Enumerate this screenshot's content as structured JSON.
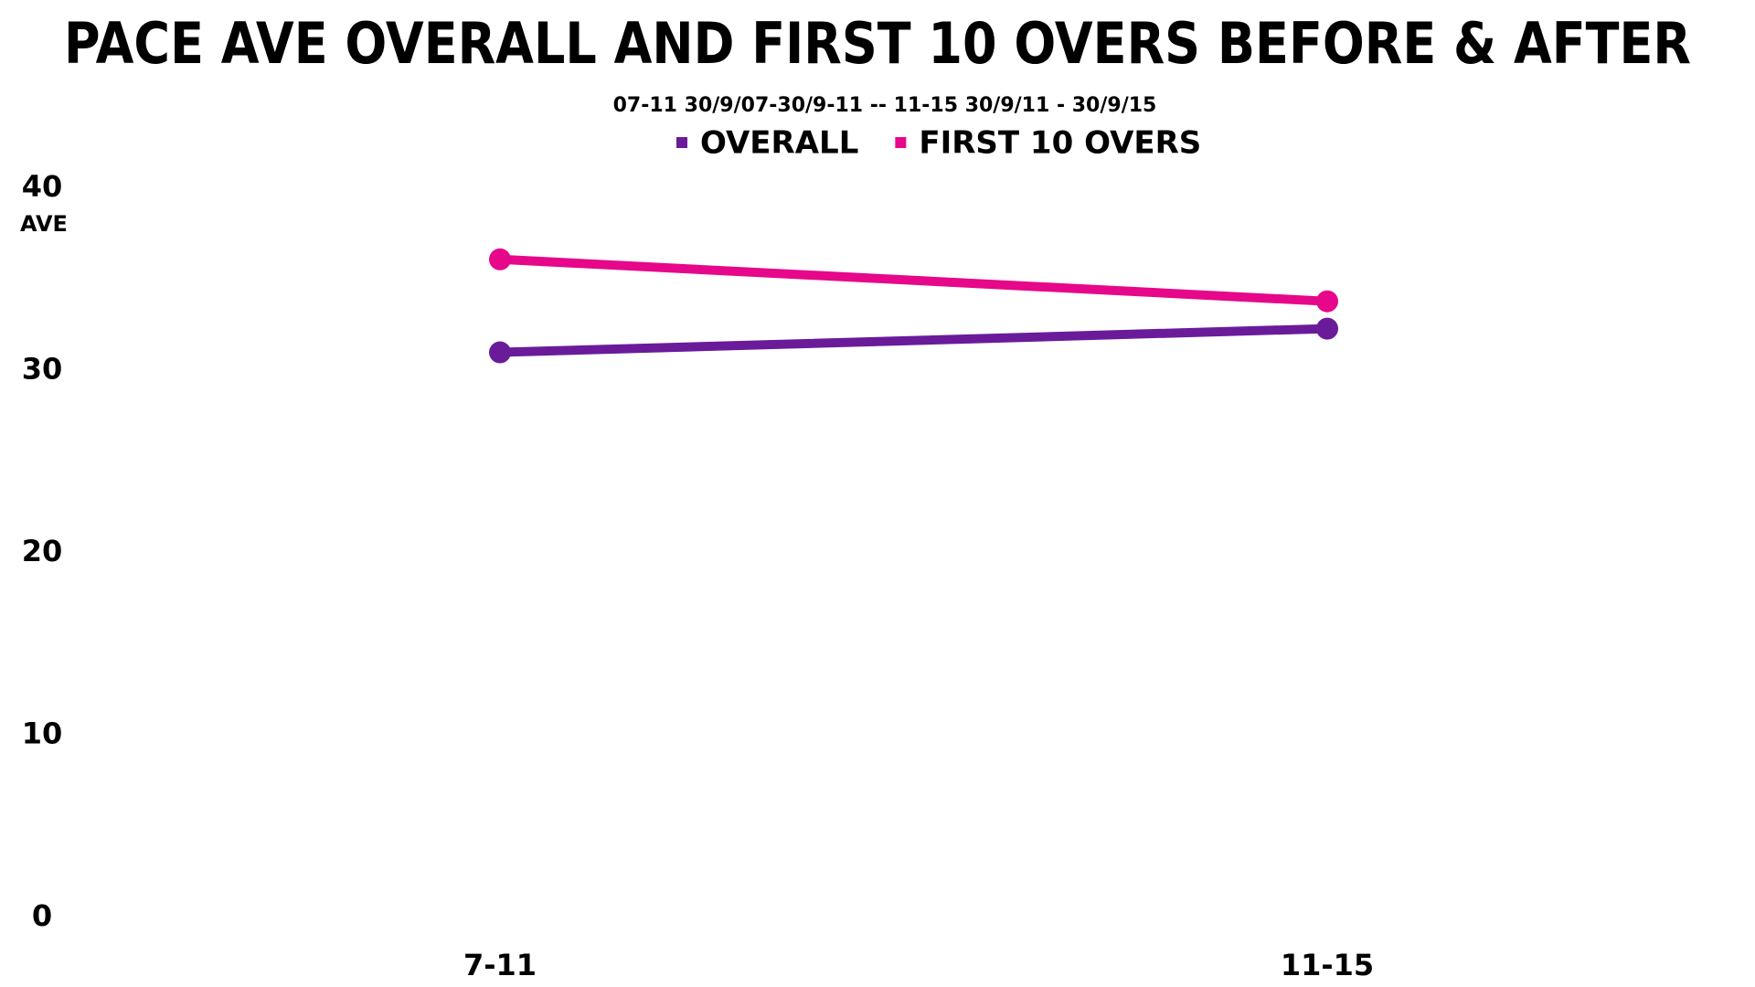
{
  "chart_data": {
    "type": "line",
    "title": "PACE AVE OVERALL AND FIRST 10 OVERS BEFORE & AFTER",
    "subtitle": "07-11 30/9/07-30/9-11  -- 11-15 30/9/11 - 30/9/15",
    "y_label": "AVE",
    "categories": [
      "7-11",
      "11-15"
    ],
    "series": [
      {
        "name": "OVERALL",
        "color": "#6a1b9a",
        "values": [
          31.0,
          32.3
        ]
      },
      {
        "name": "FIRST 10 OVERS",
        "color": "#e6078a",
        "values": [
          36.1,
          33.8
        ]
      }
    ],
    "ylim": [
      0,
      40
    ],
    "yticks": [
      0,
      10,
      20,
      30,
      40
    ],
    "grid": false,
    "legend": "top"
  }
}
